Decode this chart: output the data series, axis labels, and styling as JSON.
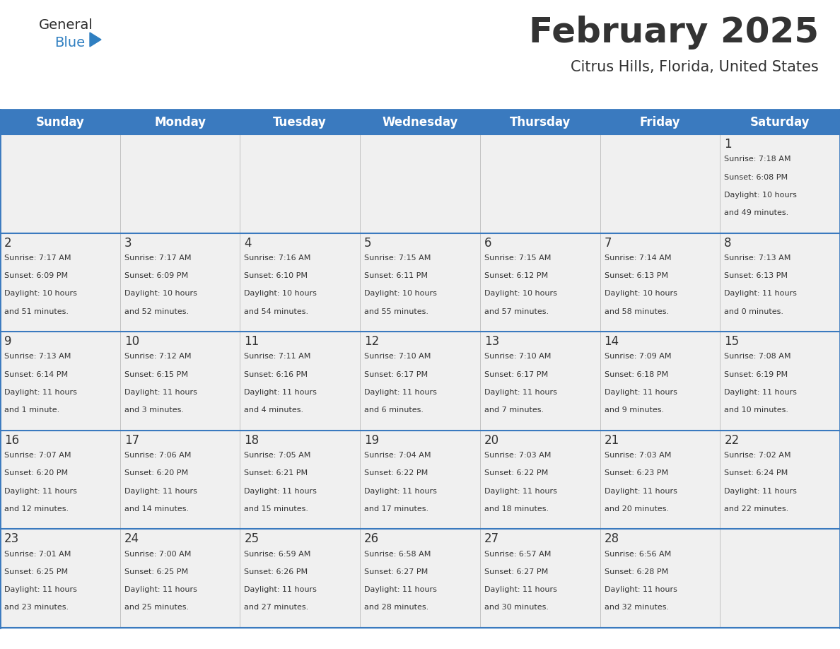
{
  "title": "February 2025",
  "subtitle": "Citrus Hills, Florida, United States",
  "header_bg_color": "#3a7abf",
  "header_text_color": "#ffffff",
  "cell_bg_color": "#f0f0f0",
  "border_color": "#3a7abf",
  "text_color": "#333333",
  "day_headers": [
    "Sunday",
    "Monday",
    "Tuesday",
    "Wednesday",
    "Thursday",
    "Friday",
    "Saturday"
  ],
  "logo_general_color": "#2b2b2b",
  "logo_blue_color": "#2f7fc1",
  "days": [
    {
      "day": 1,
      "col": 6,
      "row": 0,
      "sunrise": "7:18 AM",
      "sunset": "6:08 PM",
      "daylight_hours": 10,
      "daylight_minutes": 49
    },
    {
      "day": 2,
      "col": 0,
      "row": 1,
      "sunrise": "7:17 AM",
      "sunset": "6:09 PM",
      "daylight_hours": 10,
      "daylight_minutes": 51
    },
    {
      "day": 3,
      "col": 1,
      "row": 1,
      "sunrise": "7:17 AM",
      "sunset": "6:09 PM",
      "daylight_hours": 10,
      "daylight_minutes": 52
    },
    {
      "day": 4,
      "col": 2,
      "row": 1,
      "sunrise": "7:16 AM",
      "sunset": "6:10 PM",
      "daylight_hours": 10,
      "daylight_minutes": 54
    },
    {
      "day": 5,
      "col": 3,
      "row": 1,
      "sunrise": "7:15 AM",
      "sunset": "6:11 PM",
      "daylight_hours": 10,
      "daylight_minutes": 55
    },
    {
      "day": 6,
      "col": 4,
      "row": 1,
      "sunrise": "7:15 AM",
      "sunset": "6:12 PM",
      "daylight_hours": 10,
      "daylight_minutes": 57
    },
    {
      "day": 7,
      "col": 5,
      "row": 1,
      "sunrise": "7:14 AM",
      "sunset": "6:13 PM",
      "daylight_hours": 10,
      "daylight_minutes": 58
    },
    {
      "day": 8,
      "col": 6,
      "row": 1,
      "sunrise": "7:13 AM",
      "sunset": "6:13 PM",
      "daylight_hours": 11,
      "daylight_minutes": 0
    },
    {
      "day": 9,
      "col": 0,
      "row": 2,
      "sunrise": "7:13 AM",
      "sunset": "6:14 PM",
      "daylight_hours": 11,
      "daylight_minutes": 1
    },
    {
      "day": 10,
      "col": 1,
      "row": 2,
      "sunrise": "7:12 AM",
      "sunset": "6:15 PM",
      "daylight_hours": 11,
      "daylight_minutes": 3
    },
    {
      "day": 11,
      "col": 2,
      "row": 2,
      "sunrise": "7:11 AM",
      "sunset": "6:16 PM",
      "daylight_hours": 11,
      "daylight_minutes": 4
    },
    {
      "day": 12,
      "col": 3,
      "row": 2,
      "sunrise": "7:10 AM",
      "sunset": "6:17 PM",
      "daylight_hours": 11,
      "daylight_minutes": 6
    },
    {
      "day": 13,
      "col": 4,
      "row": 2,
      "sunrise": "7:10 AM",
      "sunset": "6:17 PM",
      "daylight_hours": 11,
      "daylight_minutes": 7
    },
    {
      "day": 14,
      "col": 5,
      "row": 2,
      "sunrise": "7:09 AM",
      "sunset": "6:18 PM",
      "daylight_hours": 11,
      "daylight_minutes": 9
    },
    {
      "day": 15,
      "col": 6,
      "row": 2,
      "sunrise": "7:08 AM",
      "sunset": "6:19 PM",
      "daylight_hours": 11,
      "daylight_minutes": 10
    },
    {
      "day": 16,
      "col": 0,
      "row": 3,
      "sunrise": "7:07 AM",
      "sunset": "6:20 PM",
      "daylight_hours": 11,
      "daylight_minutes": 12
    },
    {
      "day": 17,
      "col": 1,
      "row": 3,
      "sunrise": "7:06 AM",
      "sunset": "6:20 PM",
      "daylight_hours": 11,
      "daylight_minutes": 14
    },
    {
      "day": 18,
      "col": 2,
      "row": 3,
      "sunrise": "7:05 AM",
      "sunset": "6:21 PM",
      "daylight_hours": 11,
      "daylight_minutes": 15
    },
    {
      "day": 19,
      "col": 3,
      "row": 3,
      "sunrise": "7:04 AM",
      "sunset": "6:22 PM",
      "daylight_hours": 11,
      "daylight_minutes": 17
    },
    {
      "day": 20,
      "col": 4,
      "row": 3,
      "sunrise": "7:03 AM",
      "sunset": "6:22 PM",
      "daylight_hours": 11,
      "daylight_minutes": 18
    },
    {
      "day": 21,
      "col": 5,
      "row": 3,
      "sunrise": "7:03 AM",
      "sunset": "6:23 PM",
      "daylight_hours": 11,
      "daylight_minutes": 20
    },
    {
      "day": 22,
      "col": 6,
      "row": 3,
      "sunrise": "7:02 AM",
      "sunset": "6:24 PM",
      "daylight_hours": 11,
      "daylight_minutes": 22
    },
    {
      "day": 23,
      "col": 0,
      "row": 4,
      "sunrise": "7:01 AM",
      "sunset": "6:25 PM",
      "daylight_hours": 11,
      "daylight_minutes": 23
    },
    {
      "day": 24,
      "col": 1,
      "row": 4,
      "sunrise": "7:00 AM",
      "sunset": "6:25 PM",
      "daylight_hours": 11,
      "daylight_minutes": 25
    },
    {
      "day": 25,
      "col": 2,
      "row": 4,
      "sunrise": "6:59 AM",
      "sunset": "6:26 PM",
      "daylight_hours": 11,
      "daylight_minutes": 27
    },
    {
      "day": 26,
      "col": 3,
      "row": 4,
      "sunrise": "6:58 AM",
      "sunset": "6:27 PM",
      "daylight_hours": 11,
      "daylight_minutes": 28
    },
    {
      "day": 27,
      "col": 4,
      "row": 4,
      "sunrise": "6:57 AM",
      "sunset": "6:27 PM",
      "daylight_hours": 11,
      "daylight_minutes": 30
    },
    {
      "day": 28,
      "col": 5,
      "row": 4,
      "sunrise": "6:56 AM",
      "sunset": "6:28 PM",
      "daylight_hours": 11,
      "daylight_minutes": 32
    }
  ],
  "num_rows": 5,
  "fig_width": 11.88,
  "fig_height": 9.18,
  "dpi": 100
}
